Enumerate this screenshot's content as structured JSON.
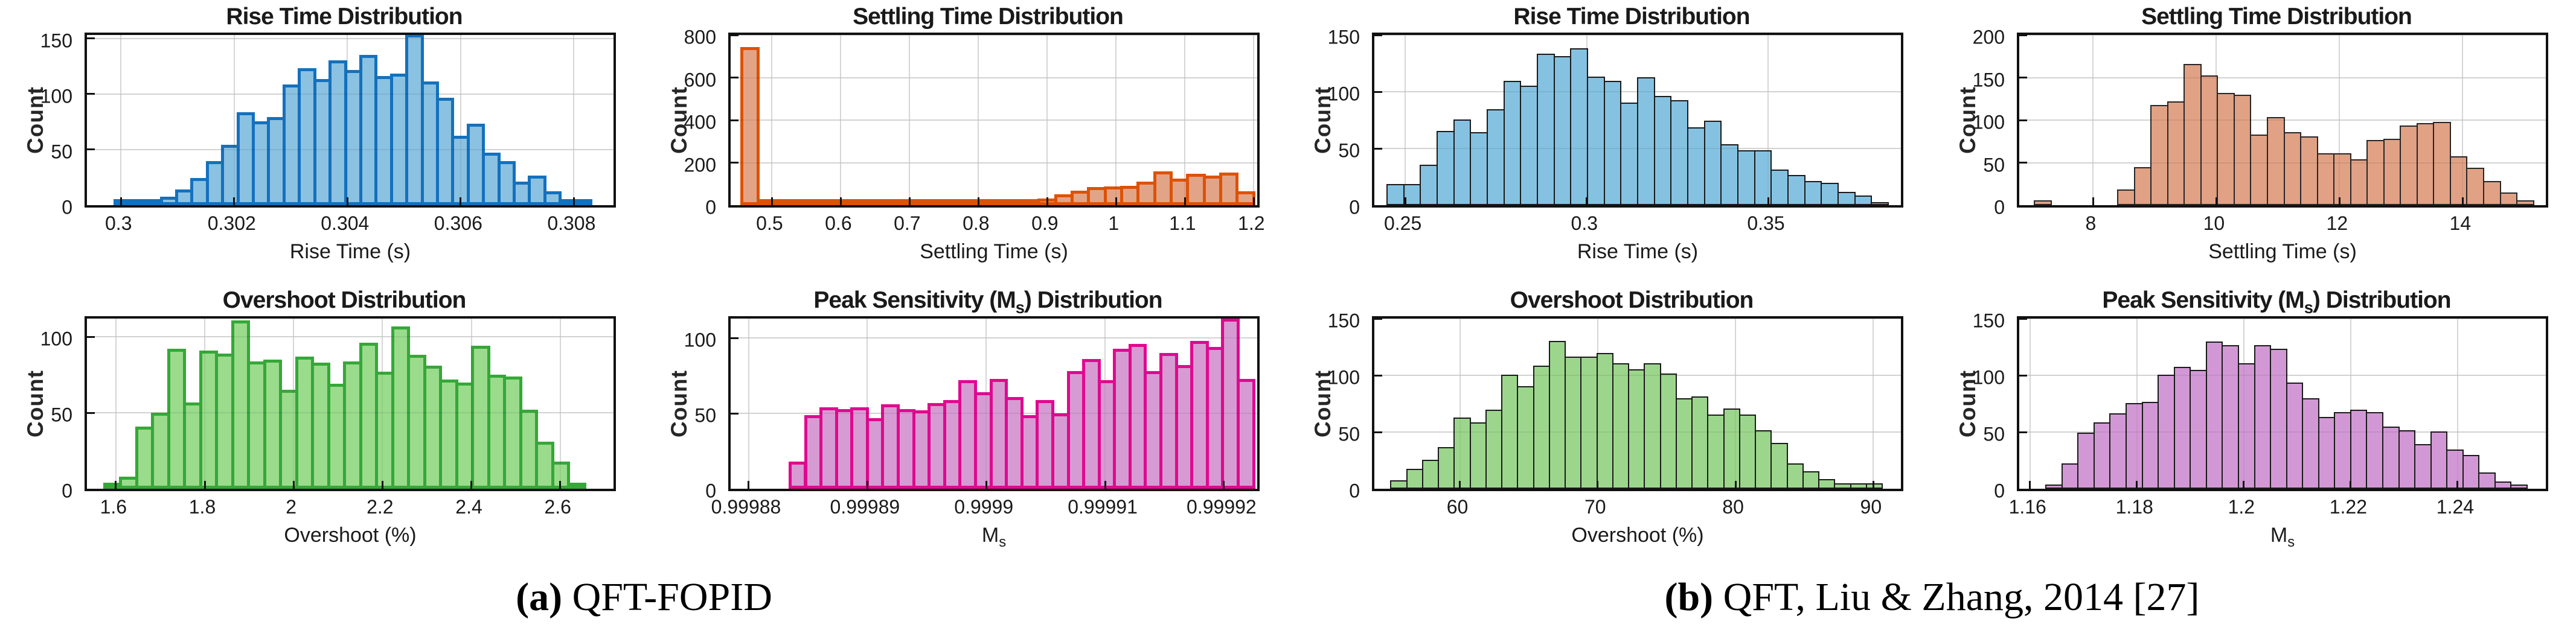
{
  "captions": [
    {
      "prefix": "(a)",
      "text": " QFT-FOPID"
    },
    {
      "prefix": "(b)",
      "text": " QFT, Liu & Zhang, 2014 [27]"
    }
  ],
  "chart_data": [
    {
      "id": "a-rise-time",
      "type": "bar",
      "title": "Rise Time Distribution",
      "xlabel": "Rise Time (s)",
      "ylabel": "Count",
      "fill": "#8BC1E1",
      "edge": "#1471BD",
      "edge_width": 5,
      "xlim": [
        0.2994,
        0.3087
      ],
      "ylim": [
        0,
        153
      ],
      "grid": true,
      "legend": "none",
      "bin_start": 0.2999,
      "bin_width": 0.000271,
      "counts": [
        2,
        2,
        3,
        6,
        13,
        23,
        38,
        53,
        82,
        74,
        78,
        107,
        122,
        112,
        129,
        120,
        134,
        115,
        117,
        152,
        110,
        95,
        61,
        72,
        46,
        38,
        20,
        25,
        11,
        3,
        4
      ],
      "xticks": [
        {
          "v": 0.3,
          "label": "0.3"
        },
        {
          "v": 0.302,
          "label": "0.302"
        },
        {
          "v": 0.304,
          "label": "0.304"
        },
        {
          "v": 0.306,
          "label": "0.306"
        },
        {
          "v": 0.308,
          "label": "0.308"
        }
      ],
      "yticks": [
        {
          "v": 0,
          "label": "0"
        },
        {
          "v": 50,
          "label": "50"
        },
        {
          "v": 100,
          "label": "100"
        },
        {
          "v": 150,
          "label": "150"
        }
      ]
    },
    {
      "id": "a-settling-time",
      "type": "bar",
      "title": "Settling Time Distribution",
      "xlabel": "Settling Time (s)",
      "ylabel": "Count",
      "fill": "#E2A487",
      "edge": "#DD5207",
      "edge_width": 5,
      "xlim": [
        0.44,
        1.205
      ],
      "ylim": [
        0,
        800
      ],
      "grid": true,
      "legend": "none",
      "bin_start": 0.456,
      "bin_width": 0.024,
      "counts": [
        735,
        3,
        3,
        3,
        3,
        3,
        3,
        3,
        3,
        3,
        3,
        3,
        3,
        3,
        3,
        3,
        8,
        12,
        25,
        45,
        60,
        78,
        80,
        85,
        103,
        152,
        118,
        140,
        133,
        147,
        57
      ],
      "xticks": [
        {
          "v": 0.5,
          "label": "0.5"
        },
        {
          "v": 0.6,
          "label": "0.6"
        },
        {
          "v": 0.7,
          "label": "0.7"
        },
        {
          "v": 0.8,
          "label": "0.8"
        },
        {
          "v": 0.9,
          "label": "0.9"
        },
        {
          "v": 1,
          "label": "1"
        },
        {
          "v": 1.1,
          "label": "1.1"
        },
        {
          "v": 1.2,
          "label": "1.2"
        }
      ],
      "yticks": [
        {
          "v": 0,
          "label": "0"
        },
        {
          "v": 200,
          "label": "200"
        },
        {
          "v": 400,
          "label": "400"
        },
        {
          "v": 600,
          "label": "600"
        },
        {
          "v": 800,
          "label": "800"
        }
      ]
    },
    {
      "id": "b-rise-time",
      "type": "bar",
      "title": "Rise Time Distribution",
      "xlabel": "Rise Time (s)",
      "ylabel": "Count",
      "fill": "#85C2E1",
      "edge": "#1A1A1A",
      "edge_width": 2,
      "xlim": [
        0.2415,
        0.3865
      ],
      "ylim": [
        0,
        150
      ],
      "grid": true,
      "legend": "none",
      "bin_start": 0.245,
      "bin_width": 0.0046,
      "counts": [
        18,
        18,
        35,
        65,
        75,
        64,
        84,
        109,
        105,
        133,
        131,
        138,
        113,
        109,
        90,
        112,
        96,
        92,
        68,
        74,
        53,
        48,
        48,
        31,
        26,
        21,
        19,
        11,
        8,
        2
      ],
      "xticks": [
        {
          "v": 0.25,
          "label": "0.25"
        },
        {
          "v": 0.3,
          "label": "0.3"
        },
        {
          "v": 0.35,
          "label": "0.35"
        }
      ],
      "yticks": [
        {
          "v": 0,
          "label": "0"
        },
        {
          "v": 50,
          "label": "50"
        },
        {
          "v": 100,
          "label": "100"
        },
        {
          "v": 150,
          "label": "150"
        }
      ]
    },
    {
      "id": "b-settling-time",
      "type": "bar",
      "title": "Settling Time Distribution",
      "xlabel": "Settling Time (s)",
      "ylabel": "Count",
      "fill": "#E0A185",
      "edge": "#262626",
      "edge_width": 2,
      "xlim": [
        6.8,
        15.35
      ],
      "ylim": [
        0,
        200
      ],
      "grid": true,
      "legend": "none",
      "bin_start": 7.05,
      "bin_width": 0.27,
      "counts": [
        5,
        0,
        0,
        0,
        0,
        18,
        44,
        117,
        121,
        165,
        152,
        131,
        129,
        82,
        103,
        85,
        80,
        60,
        60,
        53,
        76,
        77,
        93,
        96,
        97,
        57,
        43,
        28,
        14,
        5
      ],
      "xticks": [
        {
          "v": 8,
          "label": "8"
        },
        {
          "v": 10,
          "label": "10"
        },
        {
          "v": 12,
          "label": "12"
        },
        {
          "v": 14,
          "label": "14"
        }
      ],
      "yticks": [
        {
          "v": 0,
          "label": "0"
        },
        {
          "v": 50,
          "label": "50"
        },
        {
          "v": 100,
          "label": "100"
        },
        {
          "v": 150,
          "label": "150"
        },
        {
          "v": 200,
          "label": "200"
        }
      ]
    },
    {
      "id": "a-overshoot",
      "type": "bar",
      "title": "Overshoot Distribution",
      "xlabel": "Overshoot (%)",
      "ylabel": "Count",
      "fill": "#9ADB8C",
      "edge": "#35A838",
      "edge_width": 5,
      "xlim": [
        1.535,
        2.72
      ],
      "ylim": [
        0,
        112
      ],
      "grid": true,
      "legend": "none",
      "bin_start": 1.575,
      "bin_width": 0.036,
      "counts": [
        2,
        7,
        40,
        49,
        91,
        56,
        90,
        88,
        110,
        83,
        84,
        64,
        86,
        82,
        68,
        83,
        95,
        76,
        106,
        87,
        80,
        71,
        69,
        93,
        74,
        73,
        51,
        30,
        17,
        2
      ],
      "xticks": [
        {
          "v": 1.6,
          "label": "1.6"
        },
        {
          "v": 1.8,
          "label": "1.8"
        },
        {
          "v": 2,
          "label": "2"
        },
        {
          "v": 2.2,
          "label": "2.2"
        },
        {
          "v": 2.4,
          "label": "2.4"
        },
        {
          "v": 2.6,
          "label": "2.6"
        }
      ],
      "yticks": [
        {
          "v": 0,
          "label": "0"
        },
        {
          "v": 50,
          "label": "50"
        },
        {
          "v": 100,
          "label": "100"
        }
      ]
    },
    {
      "id": "a-peak-sensitivity",
      "type": "bar",
      "title": "Peak Sensitivity (M_s) Distribution",
      "xlabel": "M_s",
      "ylabel": "Count",
      "fill": "#D69BD3",
      "edge": "#E0098F",
      "edge_width": 5,
      "xlim": [
        0.9998785,
        0.9999228
      ],
      "ylim": [
        0,
        113
      ],
      "grid": true,
      "legend": "none",
      "bin_start": 0.9998835,
      "bin_width": 1.3e-06,
      "counts": [
        17,
        48,
        53,
        52,
        53,
        46,
        55,
        52,
        51,
        56,
        58,
        71,
        63,
        72,
        60,
        48,
        58,
        49,
        77,
        85,
        71,
        92,
        95,
        77,
        89,
        81,
        97,
        93,
        112,
        72
      ],
      "xticks": [
        {
          "v": 0.99988,
          "label": "0.99988"
        },
        {
          "v": 0.99989,
          "label": "0.99989"
        },
        {
          "v": 0.9999,
          "label": "0.9999"
        },
        {
          "v": 0.99991,
          "label": "0.99991"
        },
        {
          "v": 0.99992,
          "label": "0.99992"
        }
      ],
      "yticks": [
        {
          "v": 0,
          "label": "0"
        },
        {
          "v": 50,
          "label": "50"
        },
        {
          "v": 100,
          "label": "100"
        }
      ]
    },
    {
      "id": "b-overshoot",
      "type": "bar",
      "title": "Overshoot Distribution",
      "xlabel": "Overshoot (%)",
      "ylabel": "Count",
      "fill": "#9CD68C",
      "edge": "#1A1A1A",
      "edge_width": 2,
      "xlim": [
        53.8,
        92
      ],
      "ylim": [
        0,
        150
      ],
      "grid": true,
      "legend": "none",
      "bin_start": 55,
      "bin_width": 1.15,
      "counts": [
        7,
        17,
        25,
        36,
        62,
        58,
        69,
        100,
        90,
        108,
        130,
        116,
        116,
        119,
        110,
        105,
        110,
        101,
        79,
        81,
        65,
        70,
        65,
        51,
        40,
        22,
        15,
        8,
        4,
        4,
        4
      ],
      "xticks": [
        {
          "v": 60,
          "label": "60"
        },
        {
          "v": 70,
          "label": "70"
        },
        {
          "v": 80,
          "label": "80"
        },
        {
          "v": 90,
          "label": "90"
        }
      ],
      "yticks": [
        {
          "v": 0,
          "label": "0"
        },
        {
          "v": 50,
          "label": "50"
        },
        {
          "v": 100,
          "label": "100"
        },
        {
          "v": 150,
          "label": "150"
        }
      ]
    },
    {
      "id": "b-peak-sensitivity",
      "type": "bar",
      "title": "Peak Sensitivity (M_s) Distribution",
      "xlabel": "M_s",
      "ylabel": "Count",
      "fill": "#D298D5",
      "edge": "#1A1A1A",
      "edge_width": 2,
      "xlim": [
        1.158,
        1.2565
      ],
      "ylim": [
        0,
        150
      ],
      "grid": true,
      "legend": "none",
      "bin_start": 1.163,
      "bin_width": 0.003,
      "counts": [
        3,
        22,
        49,
        58,
        66,
        75,
        76,
        100,
        107,
        104,
        129,
        126,
        110,
        126,
        123,
        93,
        79,
        63,
        67,
        69,
        67,
        54,
        51,
        39,
        50,
        34,
        29,
        14,
        6,
        3
      ],
      "xticks": [
        {
          "v": 1.16,
          "label": "1.16"
        },
        {
          "v": 1.18,
          "label": "1.18"
        },
        {
          "v": 1.2,
          "label": "1.2"
        },
        {
          "v": 1.22,
          "label": "1.22"
        },
        {
          "v": 1.24,
          "label": "1.24"
        }
      ],
      "yticks": [
        {
          "v": 0,
          "label": "0"
        },
        {
          "v": 50,
          "label": "50"
        },
        {
          "v": 100,
          "label": "100"
        },
        {
          "v": 150,
          "label": "150"
        }
      ]
    }
  ]
}
